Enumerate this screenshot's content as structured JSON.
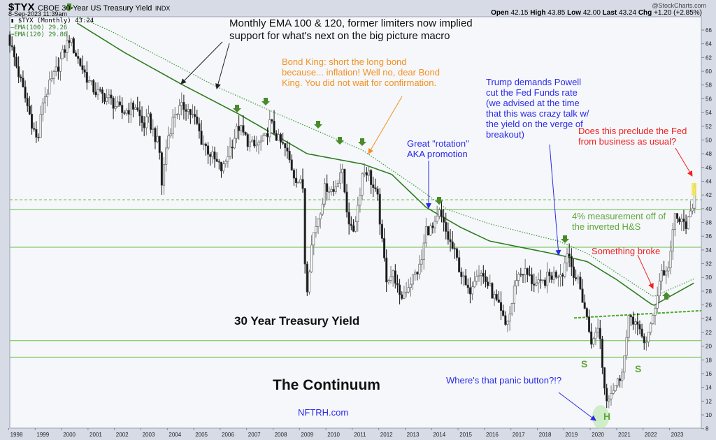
{
  "header": {
    "symbol": "$TYX",
    "name": "CBOE 30-Year US Treasury Yield",
    "exchange": "INDX",
    "timestamp": "8-Sep-2023 11:39am",
    "source": "@StockCharts.com",
    "ohlc": {
      "open_label": "Open",
      "open": "42.15",
      "high_label": "High",
      "high": "43.85",
      "low_label": "Low",
      "low": "42.00",
      "last_label": "Last",
      "last": "43.24",
      "chg_label": "Chg",
      "chg": "+1.20 (+2.85%)"
    }
  },
  "legend": {
    "price": "$TYX (Monthly) 43.24",
    "ema100": "EMA(100) 29.26",
    "ema120": "EMA(120) 29.86"
  },
  "colors": {
    "ema": "#2e7d1f",
    "hline": "#6cbf45",
    "orange": "#f5901e",
    "blue": "#2a2ae8",
    "red": "#f22020",
    "green_text": "#5fa83a",
    "arrow_green": "#4a8a2a"
  },
  "annotations": {
    "ema_note": [
      "Monthly EMA 100 & 120, former limiters now implied",
      "support for what's next on the big picture macro"
    ],
    "bond_king": [
      "Bond King: short the long bond",
      "because... inflation! Well no, dear Bond",
      "King. You did not wait for confirmation."
    ],
    "trump": [
      "Trump demands Powell",
      "cut the Fed Funds rate",
      "(we advised at the time",
      "that this was crazy talk w/",
      "the yield on the verge of",
      "breakout)"
    ],
    "rotation": [
      "Great \"rotation\"",
      "AKA promotion"
    ],
    "preclude": [
      "Does this preclude the Fed",
      "from business as usual?"
    ],
    "measurement": [
      "4% measurement off of",
      "the inverted H&S"
    ],
    "broke": "Something broke",
    "title": "30 Year Treasury Yield",
    "continuum": "The Continuum",
    "panic": "Where's that panic button?!?",
    "site": "NFTRH.com",
    "s1": "S",
    "s2": "S",
    "h": "H"
  },
  "chart_data": {
    "type": "candlestick",
    "title": "CBOE 30-Year US Treasury Yield ($TYX) Monthly",
    "xlabel": "",
    "ylabel": "",
    "x_range": [
      1997.75,
      2023.75
    ],
    "ylim": [
      8,
      66
    ],
    "x_ticks": [
      "1998",
      "1999",
      "2000",
      "2001",
      "2002",
      "2003",
      "2004",
      "2005",
      "2006",
      "2007",
      "2008",
      "2009",
      "2010",
      "2011",
      "2012",
      "2013",
      "2014",
      "2015",
      "2016",
      "2017",
      "2018",
      "2019",
      "2020",
      "2021",
      "2022",
      "2023"
    ],
    "y_ticks": [
      8,
      10,
      12,
      14,
      16,
      18,
      20,
      22,
      24,
      26,
      28,
      30,
      32,
      34,
      36,
      38,
      40,
      42,
      44,
      46,
      48,
      50,
      52,
      54,
      56,
      58,
      60,
      62,
      64,
      66
    ],
    "close_keypoints": [
      [
        1997.75,
        64.3
      ],
      [
        1998.8,
        49.5
      ],
      [
        1999.0,
        55.7
      ],
      [
        1999.5,
        60
      ],
      [
        2000.0,
        64.8
      ],
      [
        2000.3,
        62
      ],
      [
        2000.8,
        58
      ],
      [
        2001.0,
        57
      ],
      [
        2001.5,
        56
      ],
      [
        2002.0,
        54
      ],
      [
        2002.5,
        55
      ],
      [
        2002.8,
        52
      ],
      [
        2003.0,
        53
      ],
      [
        2003.4,
        49
      ],
      [
        2003.5,
        43.6
      ],
      [
        2003.7,
        50
      ],
      [
        2004.0,
        54
      ],
      [
        2004.4,
        55
      ],
      [
        2004.8,
        52.6
      ],
      [
        2005.0,
        50
      ],
      [
        2005.5,
        47
      ],
      [
        2005.8,
        45.5
      ],
      [
        2006.0,
        48
      ],
      [
        2006.4,
        52
      ],
      [
        2006.8,
        49.5
      ],
      [
        2007.0,
        49
      ],
      [
        2007.4,
        50
      ],
      [
        2007.6,
        52.6
      ],
      [
        2007.9,
        50
      ],
      [
        2008.2,
        48.5
      ],
      [
        2008.5,
        45
      ],
      [
        2008.85,
        43
      ],
      [
        2008.95,
        27
      ],
      [
        2009.2,
        35.8
      ],
      [
        2009.5,
        40
      ],
      [
        2009.7,
        43.4
      ],
      [
        2010.0,
        42.5
      ],
      [
        2010.3,
        46
      ],
      [
        2010.5,
        40
      ],
      [
        2010.7,
        36
      ],
      [
        2010.9,
        40
      ],
      [
        2011.1,
        45.5
      ],
      [
        2011.3,
        45.5
      ],
      [
        2011.5,
        43
      ],
      [
        2011.7,
        41
      ],
      [
        2011.8,
        35.8
      ],
      [
        2012.0,
        30
      ],
      [
        2012.3,
        30.5
      ],
      [
        2012.5,
        26.7
      ],
      [
        2012.8,
        28.7
      ],
      [
        2013.0,
        30
      ],
      [
        2013.3,
        31.7
      ],
      [
        2013.5,
        37
      ],
      [
        2013.8,
        37
      ],
      [
        2014.0,
        39.3
      ],
      [
        2014.3,
        36
      ],
      [
        2014.6,
        33.3
      ],
      [
        2014.9,
        29.7
      ],
      [
        2015.1,
        27.6
      ],
      [
        2015.4,
        31
      ],
      [
        2015.6,
        30.5
      ],
      [
        2015.9,
        28.5
      ],
      [
        2016.2,
        26
      ],
      [
        2016.5,
        23
      ],
      [
        2016.7,
        25
      ],
      [
        2016.9,
        30
      ],
      [
        2017.2,
        31
      ],
      [
        2017.5,
        29.5
      ],
      [
        2017.8,
        28.7
      ],
      [
        2018.1,
        30
      ],
      [
        2018.4,
        30.5
      ],
      [
        2018.7,
        31
      ],
      [
        2018.85,
        34.3
      ],
      [
        2019.0,
        31.7
      ],
      [
        2019.3,
        28.7
      ],
      [
        2019.5,
        25.6
      ],
      [
        2019.7,
        21.6
      ],
      [
        2019.8,
        20.2
      ],
      [
        2020.0,
        23
      ],
      [
        2020.1,
        20.6
      ],
      [
        2020.2,
        15.5
      ],
      [
        2020.3,
        12.5
      ],
      [
        2020.5,
        13.5
      ],
      [
        2020.8,
        15
      ],
      [
        2021.0,
        18.5
      ],
      [
        2021.2,
        24.6
      ],
      [
        2021.4,
        23.6
      ],
      [
        2021.6,
        21.6
      ],
      [
        2021.8,
        20.6
      ],
      [
        2022.0,
        22.6
      ],
      [
        2022.2,
        26.7
      ],
      [
        2022.4,
        31
      ],
      [
        2022.6,
        30.5
      ],
      [
        2022.8,
        34.8
      ],
      [
        2022.9,
        39
      ],
      [
        2023.0,
        38.5
      ],
      [
        2023.2,
        37.8
      ],
      [
        2023.4,
        37.8
      ],
      [
        2023.6,
        40
      ],
      [
        2023.67,
        43.24
      ]
    ],
    "series": [
      {
        "name": "EMA(100)",
        "style": "solid",
        "last": 29.26,
        "points": [
          [
            2000.3,
            67
          ],
          [
            2002.1,
            62.7
          ],
          [
            2004.3,
            58
          ],
          [
            2006.4,
            53.8
          ],
          [
            2009.0,
            48
          ],
          [
            2011.1,
            46.5
          ],
          [
            2012.2,
            45
          ],
          [
            2013.5,
            40.2
          ],
          [
            2014.8,
            37.3
          ],
          [
            2015.9,
            35.3
          ],
          [
            2018.5,
            33.3
          ],
          [
            2019.6,
            32.3
          ],
          [
            2020.7,
            29.7
          ],
          [
            2022.1,
            25.9
          ],
          [
            2023.67,
            29.26
          ]
        ]
      },
      {
        "name": "EMA(120)",
        "style": "dotted",
        "last": 29.86,
        "points": [
          [
            2000.3,
            68
          ],
          [
            2001.6,
            65.8
          ],
          [
            2005.6,
            57.7
          ],
          [
            2008.0,
            53.6
          ],
          [
            2011.1,
            48.5
          ],
          [
            2013.2,
            43
          ],
          [
            2014.3,
            39.9
          ],
          [
            2015.9,
            37.8
          ],
          [
            2018.5,
            35.3
          ],
          [
            2019.6,
            33.5
          ],
          [
            2020.7,
            30.7
          ],
          [
            2022.1,
            27.2
          ],
          [
            2023.67,
            29.86
          ]
        ]
      }
    ],
    "horizontal_lines": [
      {
        "value": 41.3,
        "style": "dashed"
      },
      {
        "value": 39.9,
        "style": "solid"
      },
      {
        "value": 34.4,
        "style": "solid"
      },
      {
        "value": 20.8,
        "style": "solid"
      },
      {
        "value": 18.4,
        "style": "solid"
      }
    ],
    "neckline": [
      [
        2019.1,
        24.1
      ],
      [
        2023.9,
        25.2
      ]
    ],
    "grid": false,
    "legend_placement": "top-left"
  }
}
